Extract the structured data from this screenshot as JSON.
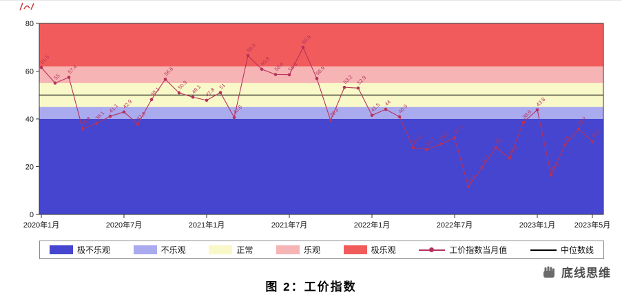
{
  "figure": {
    "caption": "图 2：工价指数",
    "brand": "底线思维"
  },
  "chart_data": {
    "type": "line",
    "title": "",
    "xlabel": "",
    "ylabel": "",
    "x_unit": "month",
    "x_range": [
      "2020-01",
      "2023-05"
    ],
    "x_tick_labels": [
      "2020年1月",
      "2020年7月",
      "2021年1月",
      "2021年7月",
      "2022年1月",
      "2022年7月",
      "2023年1月",
      "2023年5月"
    ],
    "x_tick_months": [
      0,
      6,
      12,
      18,
      24,
      30,
      36,
      40
    ],
    "ylim": [
      0,
      80
    ],
    "y_ticks": [
      0,
      20,
      40,
      60,
      80
    ],
    "grid": false,
    "legend_position": "bottom",
    "median_line": {
      "value": 50,
      "label": "中位数线",
      "color": "#000000"
    },
    "bands": [
      {
        "label": "极不乐观",
        "from": 0,
        "to": 40,
        "color": "#4545d0"
      },
      {
        "label": "不乐观",
        "from": 40,
        "to": 45,
        "color": "#aaaaef"
      },
      {
        "label": "正常",
        "from": 45,
        "to": 55,
        "color": "#f8f8c8"
      },
      {
        "label": "乐观",
        "from": 55,
        "to": 62,
        "color": "#f6b4b4"
      },
      {
        "label": "极乐观",
        "from": 62,
        "to": 80,
        "color": "#f15b5b"
      }
    ],
    "series": [
      {
        "name": "工价指数当月值",
        "color": "#b5315b",
        "values": [
          61.5,
          55,
          57.4,
          35.8,
          38.1,
          41.1,
          42.9,
          37.8,
          48.1,
          56.6,
          50.9,
          49.1,
          47.8,
          51,
          40.6,
          66.5,
          60.8,
          58.6,
          58.5,
          69.9,
          56.9,
          39.3,
          53.2,
          52.9,
          41.5,
          44,
          40.9,
          27.9,
          27.2,
          29.4,
          32.1,
          11.6,
          19.7,
          28,
          23.6,
          38.6,
          43.8,
          16.5,
          29,
          35.7,
          30.5
        ]
      }
    ]
  }
}
